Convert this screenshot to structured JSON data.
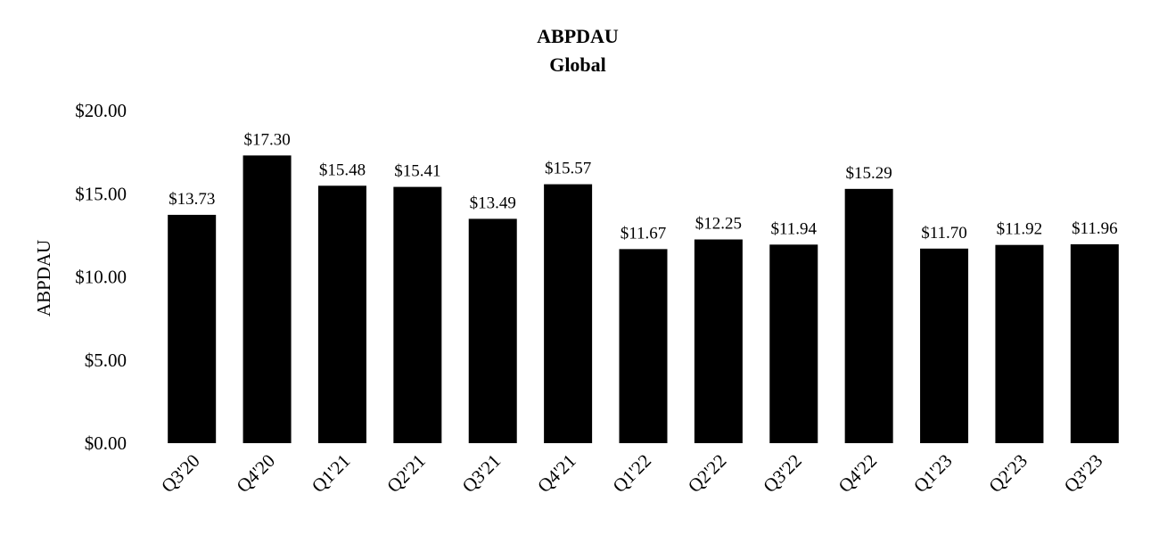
{
  "chart_data": {
    "type": "bar",
    "title": "ABPDAU",
    "subtitle": "Global",
    "ylabel": "ABPDAU",
    "xlabel": "",
    "ylim": [
      0,
      20
    ],
    "yticks": [
      0,
      5,
      10,
      15,
      20
    ],
    "ytick_labels": [
      "$0.00",
      "$5.00",
      "$10.00",
      "$15.00",
      "$20.00"
    ],
    "categories": [
      "Q3'20",
      "Q4'20",
      "Q1'21",
      "Q2'21",
      "Q3'21",
      "Q4'21",
      "Q1'22",
      "Q2'22",
      "Q3'22",
      "Q4'22",
      "Q1'23",
      "Q2'23",
      "Q3'23"
    ],
    "values": [
      13.73,
      17.3,
      15.48,
      15.41,
      13.49,
      15.57,
      11.67,
      12.25,
      11.94,
      15.29,
      11.7,
      11.92,
      11.96
    ],
    "data_labels": [
      "$13.73",
      "$17.30",
      "$15.48",
      "$15.41",
      "$13.49",
      "$15.57",
      "$11.67",
      "$12.25",
      "$11.94",
      "$15.29",
      "$11.70",
      "$11.92",
      "$11.96"
    ],
    "bar_color": "#000000",
    "grid": false,
    "legend": "none"
  }
}
